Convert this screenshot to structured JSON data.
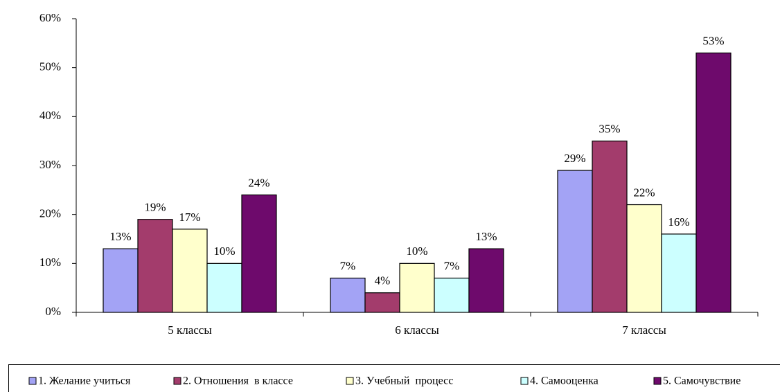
{
  "chart_data": {
    "type": "bar",
    "categories": [
      "5 классы",
      "6 классы",
      "7 классы"
    ],
    "series": [
      {
        "name": "1. Желание учиться",
        "color": "#a3a3f5",
        "values": [
          13,
          7,
          29
        ],
        "value_labels": [
          "13%",
          "7%",
          "29%"
        ]
      },
      {
        "name": "2. Отношения  в классе",
        "color": "#a33c6c",
        "values": [
          19,
          4,
          35
        ],
        "value_labels": [
          "19%",
          "4%",
          "35%"
        ]
      },
      {
        "name": "3. Учебный  процесс",
        "color": "#ffffcc",
        "values": [
          17,
          10,
          22
        ],
        "value_labels": [
          "17%",
          "10%",
          "22%"
        ]
      },
      {
        "name": "4. Самооценка",
        "color": "#ccffff",
        "values": [
          10,
          7,
          16
        ],
        "value_labels": [
          "10%",
          "7%",
          "16%"
        ]
      },
      {
        "name": "5. Самочувствие",
        "color": "#6e0a6c",
        "values": [
          24,
          13,
          53
        ],
        "value_labels": [
          "24%",
          "13%",
          "53%"
        ]
      }
    ],
    "ylim": [
      0,
      60
    ],
    "yticks": [
      {
        "value": 0,
        "label": "0%"
      },
      {
        "value": 10,
        "label": "10%"
      },
      {
        "value": 20,
        "label": "20%"
      },
      {
        "value": 30,
        "label": "30%"
      },
      {
        "value": 40,
        "label": "40%"
      },
      {
        "value": 50,
        "label": "50%"
      },
      {
        "value": 60,
        "label": "60%"
      }
    ],
    "legend": "bottom"
  }
}
